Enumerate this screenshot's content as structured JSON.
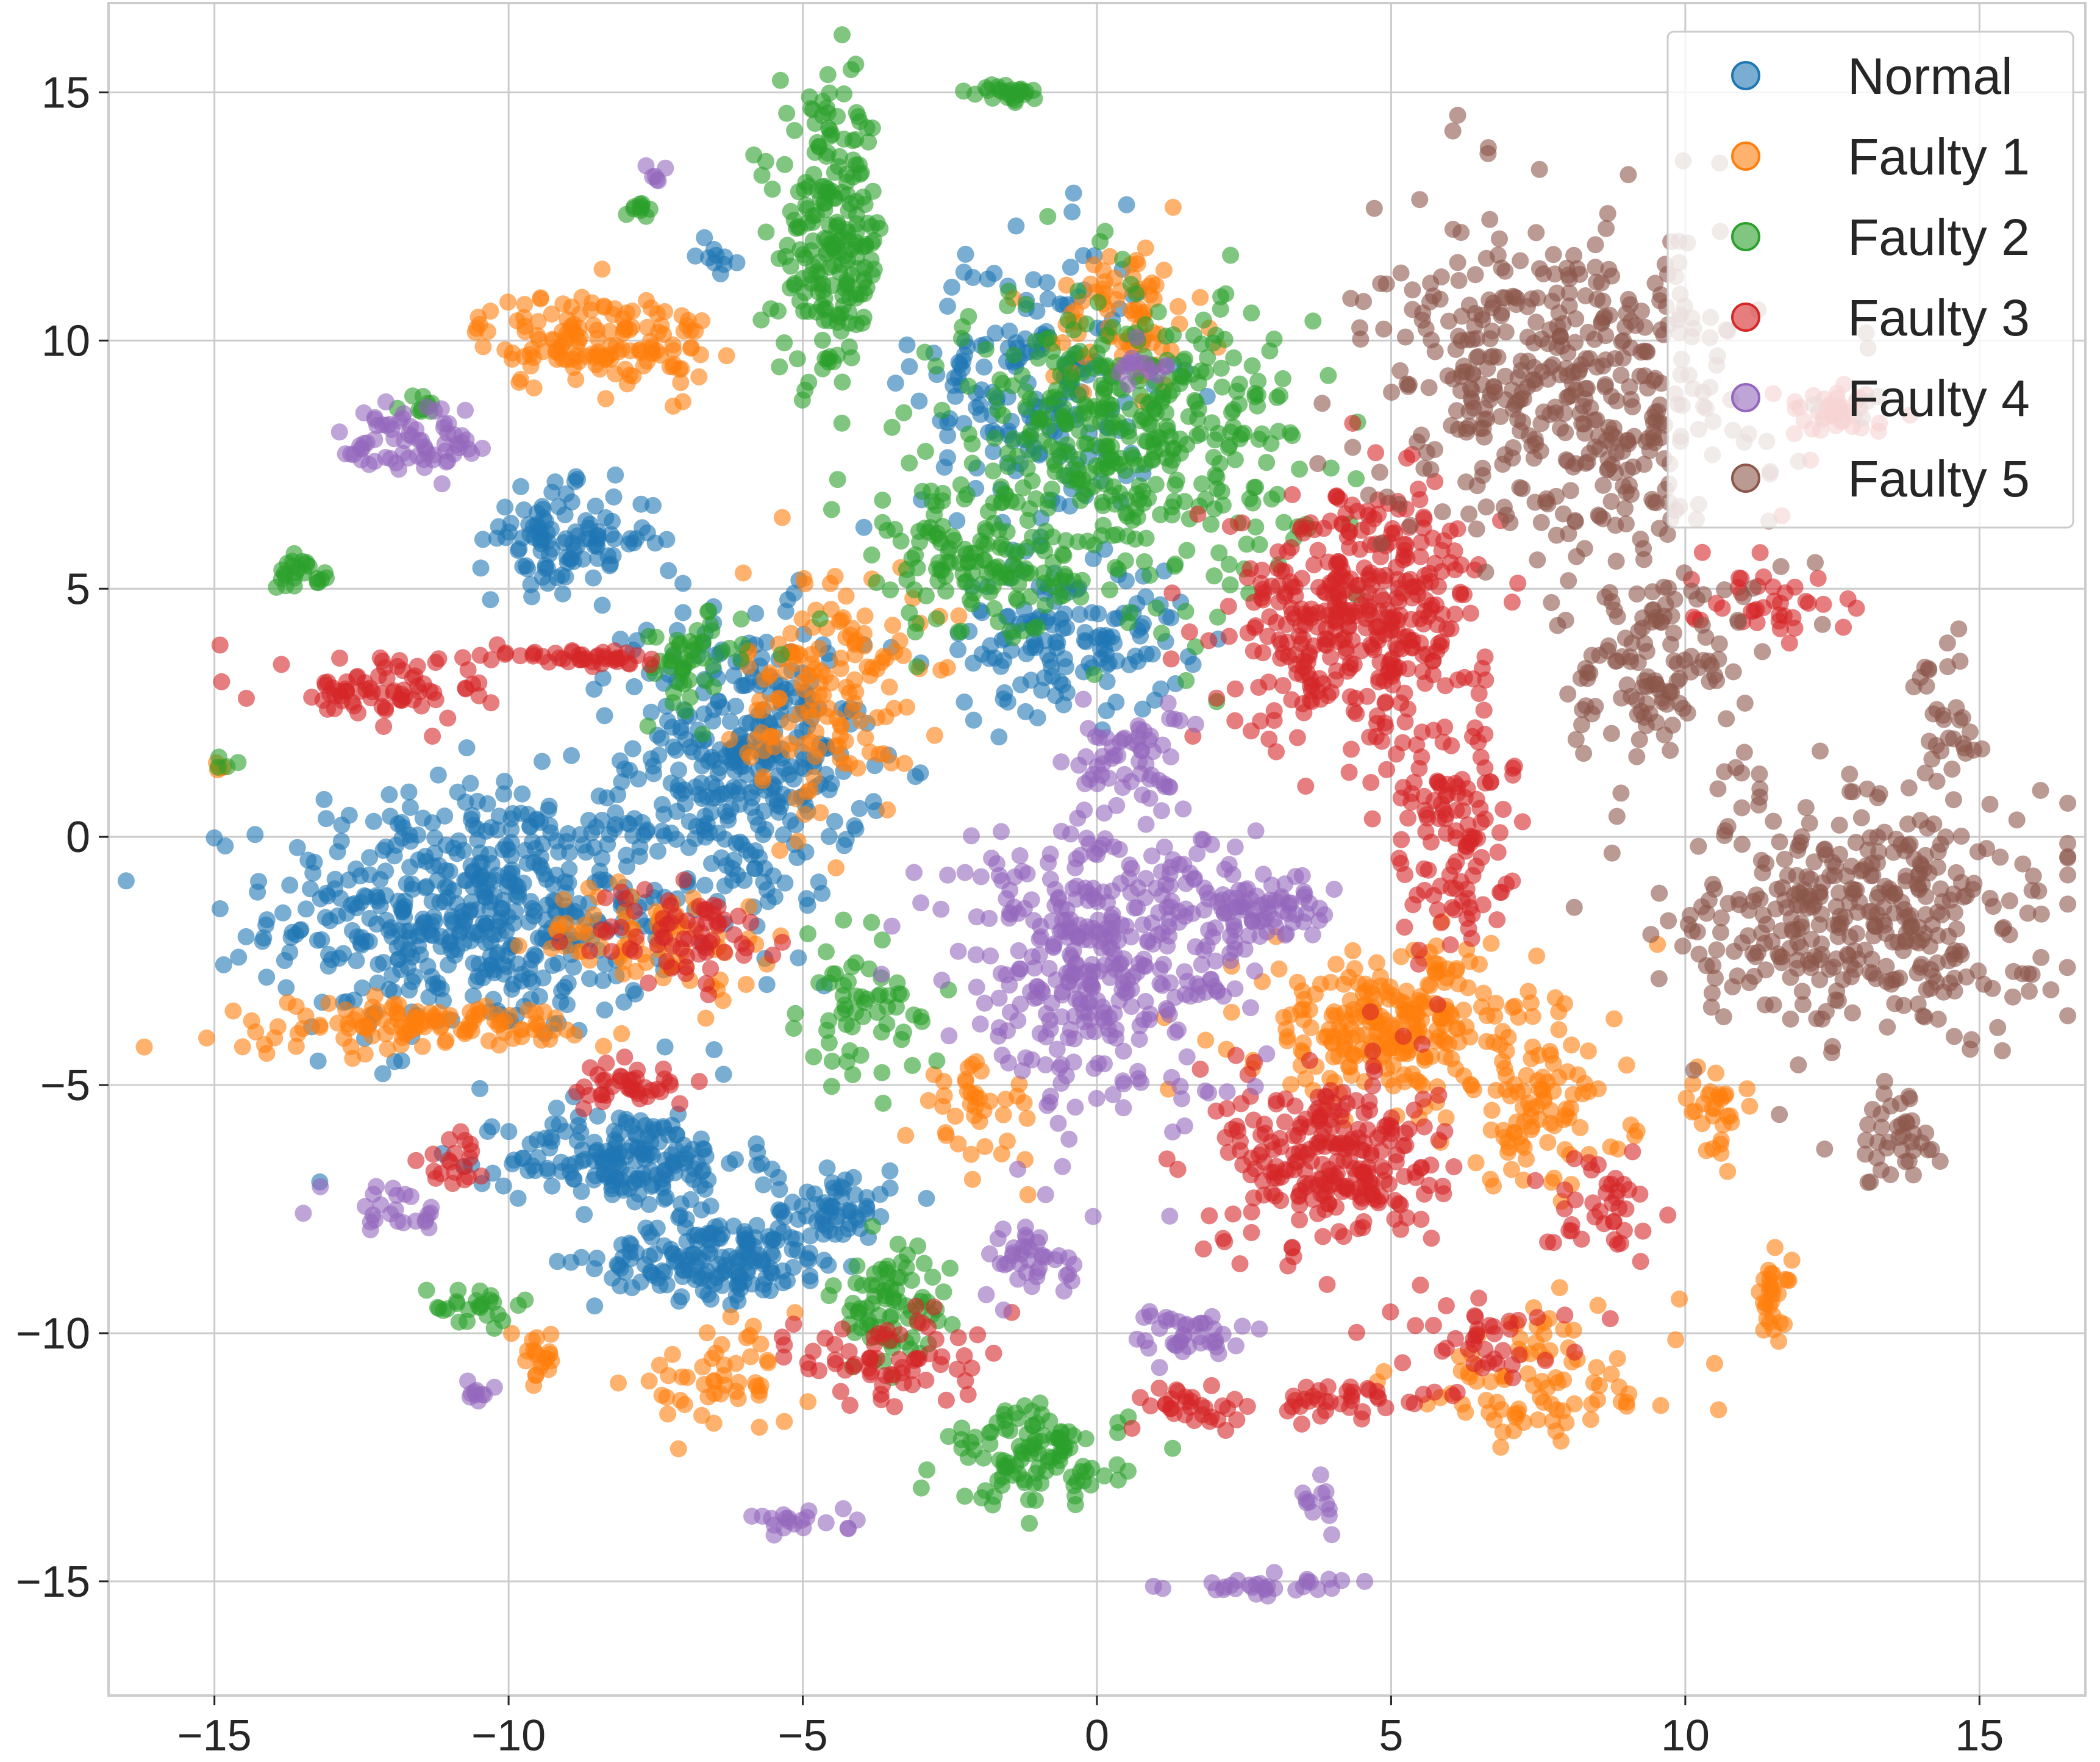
{
  "chart_data": {
    "type": "scatter",
    "title": "",
    "xlabel": "",
    "ylabel": "",
    "xlim": [
      -16.8,
      16.8
    ],
    "ylim": [
      -17.3,
      16.8
    ],
    "xticks": [
      -15,
      -10,
      -5,
      0,
      5,
      10,
      15
    ],
    "yticks": [
      -15,
      -10,
      -5,
      0,
      5,
      10,
      15
    ],
    "xtick_labels": [
      "−15",
      "−10",
      "−5",
      "0",
      "5",
      "10",
      "15"
    ],
    "ytick_labels": [
      "−15",
      "−10",
      "−5",
      "0",
      "5",
      "10",
      "15"
    ],
    "grid": true,
    "legend_position": "top-right",
    "marker_opacity": 0.6,
    "series": [
      {
        "name": "Normal",
        "color": "#1f77b4",
        "clusters": [
          {
            "cx": -10.5,
            "cy": -1.5,
            "rx": 3.5,
            "ry": 2.6,
            "n": 520
          },
          {
            "cx": -6.0,
            "cy": 1.5,
            "rx": 2.0,
            "ry": 3.0,
            "n": 340
          },
          {
            "cx": -8.0,
            "cy": -6.5,
            "rx": 2.0,
            "ry": 1.0,
            "n": 180
          },
          {
            "cx": -6.5,
            "cy": -8.5,
            "rx": 2.0,
            "ry": 0.8,
            "n": 160
          },
          {
            "cx": -4.5,
            "cy": -7.5,
            "rx": 1.0,
            "ry": 1.0,
            "n": 70
          },
          {
            "cx": -9.0,
            "cy": 6.0,
            "rx": 1.5,
            "ry": 1.0,
            "n": 110
          },
          {
            "cx": -1.0,
            "cy": 9.0,
            "rx": 2.0,
            "ry": 3.0,
            "n": 200
          },
          {
            "cx": -0.5,
            "cy": 4.0,
            "rx": 2.0,
            "ry": 1.5,
            "n": 140
          },
          {
            "cx": -6.5,
            "cy": 11.7,
            "rx": 0.3,
            "ry": 0.3,
            "n": 10
          }
        ]
      },
      {
        "name": "Faulty 1",
        "color": "#ff7f0e",
        "clusters": [
          {
            "cx": -8.5,
            "cy": 10.0,
            "rx": 2.0,
            "ry": 1.0,
            "n": 150
          },
          {
            "cx": -4.5,
            "cy": 3.0,
            "rx": 1.5,
            "ry": 2.5,
            "n": 150
          },
          {
            "cx": -11.5,
            "cy": -3.8,
            "rx": 3.5,
            "ry": 0.5,
            "n": 120
          },
          {
            "cx": -7.5,
            "cy": -2.0,
            "rx": 2.0,
            "ry": 1.0,
            "n": 80
          },
          {
            "cx": 0.5,
            "cy": 10.5,
            "rx": 1.2,
            "ry": 1.5,
            "n": 80
          },
          {
            "cx": 5.0,
            "cy": -3.8,
            "rx": 2.5,
            "ry": 1.5,
            "n": 260
          },
          {
            "cx": 7.5,
            "cy": -5.5,
            "rx": 1.5,
            "ry": 1.5,
            "n": 90
          },
          {
            "cx": 7.5,
            "cy": -11.0,
            "rx": 2.5,
            "ry": 1.5,
            "n": 90
          },
          {
            "cx": 11.5,
            "cy": -9.3,
            "rx": 0.3,
            "ry": 0.8,
            "n": 30
          },
          {
            "cx": 10.5,
            "cy": -5.5,
            "rx": 0.5,
            "ry": 0.8,
            "n": 30
          },
          {
            "cx": -6.5,
            "cy": -11.0,
            "rx": 1.5,
            "ry": 1.0,
            "n": 50
          },
          {
            "cx": -2.0,
            "cy": -5.5,
            "rx": 1.0,
            "ry": 1.0,
            "n": 40
          },
          {
            "cx": -15.0,
            "cy": 1.4,
            "rx": 0.2,
            "ry": 0.2,
            "n": 4
          },
          {
            "cx": -9.5,
            "cy": -10.5,
            "rx": 0.3,
            "ry": 0.6,
            "n": 20
          }
        ]
      },
      {
        "name": "Faulty 2",
        "color": "#2ca02c",
        "clusters": [
          {
            "cx": -4.5,
            "cy": 12.0,
            "rx": 0.9,
            "ry": 2.8,
            "n": 220
          },
          {
            "cx": 0.5,
            "cy": 8.0,
            "rx": 3.0,
            "ry": 3.0,
            "n": 420
          },
          {
            "cx": -2.0,
            "cy": 5.5,
            "rx": 1.5,
            "ry": 1.5,
            "n": 120
          },
          {
            "cx": -1.0,
            "cy": -12.5,
            "rx": 1.5,
            "ry": 1.0,
            "n": 110
          },
          {
            "cx": -3.5,
            "cy": -9.5,
            "rx": 1.0,
            "ry": 1.2,
            "n": 80
          },
          {
            "cx": -4.0,
            "cy": -3.5,
            "rx": 1.0,
            "ry": 1.5,
            "n": 60
          },
          {
            "cx": -7.0,
            "cy": 3.5,
            "rx": 1.0,
            "ry": 1.0,
            "n": 50
          },
          {
            "cx": -13.5,
            "cy": 5.3,
            "rx": 0.5,
            "ry": 0.3,
            "n": 25
          },
          {
            "cx": -1.5,
            "cy": 15.0,
            "rx": 0.5,
            "ry": 0.2,
            "n": 25
          },
          {
            "cx": -11.5,
            "cy": 8.7,
            "rx": 0.3,
            "ry": 0.2,
            "n": 10
          },
          {
            "cx": -7.8,
            "cy": 12.7,
            "rx": 0.3,
            "ry": 0.2,
            "n": 10
          },
          {
            "cx": -10.5,
            "cy": -9.5,
            "rx": 1.0,
            "ry": 0.5,
            "n": 25
          },
          {
            "cx": -14.8,
            "cy": 1.5,
            "rx": 0.2,
            "ry": 0.2,
            "n": 4
          }
        ]
      },
      {
        "name": "Faulty 3",
        "color": "#d62728",
        "clusters": [
          {
            "cx": 4.5,
            "cy": 4.5,
            "rx": 2.2,
            "ry": 2.5,
            "n": 400
          },
          {
            "cx": 6.0,
            "cy": 0.0,
            "rx": 1.0,
            "ry": 2.5,
            "n": 110
          },
          {
            "cx": 4.0,
            "cy": -6.5,
            "rx": 1.8,
            "ry": 1.8,
            "n": 250
          },
          {
            "cx": -12.0,
            "cy": 3.0,
            "rx": 1.8,
            "ry": 0.8,
            "n": 80
          },
          {
            "cx": -8.5,
            "cy": 3.6,
            "rx": 1.3,
            "ry": 0.2,
            "n": 40
          },
          {
            "cx": -7.0,
            "cy": -2.0,
            "rx": 1.5,
            "ry": 1.0,
            "n": 70
          },
          {
            "cx": -8.0,
            "cy": -5.0,
            "rx": 1.0,
            "ry": 0.5,
            "n": 40
          },
          {
            "cx": -3.5,
            "cy": -10.5,
            "rx": 1.5,
            "ry": 1.0,
            "n": 70
          },
          {
            "cx": 1.5,
            "cy": -11.5,
            "rx": 1.0,
            "ry": 0.5,
            "n": 30
          },
          {
            "cx": 4.0,
            "cy": -11.3,
            "rx": 1.5,
            "ry": 0.3,
            "n": 40
          },
          {
            "cx": 6.5,
            "cy": -10.0,
            "rx": 1.5,
            "ry": 0.8,
            "n": 40
          },
          {
            "cx": 8.5,
            "cy": -7.5,
            "rx": 1.0,
            "ry": 1.0,
            "n": 40
          },
          {
            "cx": 11.5,
            "cy": 5.0,
            "rx": 1.5,
            "ry": 1.0,
            "n": 40
          },
          {
            "cx": 12.5,
            "cy": 8.5,
            "rx": 1.0,
            "ry": 0.6,
            "n": 40
          },
          {
            "cx": -11.0,
            "cy": -6.5,
            "rx": 0.5,
            "ry": 0.5,
            "n": 20
          }
        ]
      },
      {
        "name": "Faulty 4",
        "color": "#9467bd",
        "clusters": [
          {
            "cx": 0.0,
            "cy": -2.5,
            "rx": 2.5,
            "ry": 3.0,
            "n": 360
          },
          {
            "cx": 2.5,
            "cy": -1.5,
            "rx": 1.5,
            "ry": 0.8,
            "n": 90
          },
          {
            "cx": 0.5,
            "cy": 1.5,
            "rx": 1.0,
            "ry": 1.0,
            "n": 60
          },
          {
            "cx": -11.5,
            "cy": 8.0,
            "rx": 1.3,
            "ry": 0.8,
            "n": 70
          },
          {
            "cx": -1.0,
            "cy": -8.5,
            "rx": 0.8,
            "ry": 0.8,
            "n": 40
          },
          {
            "cx": 1.5,
            "cy": -10.0,
            "rx": 1.2,
            "ry": 0.5,
            "n": 40
          },
          {
            "cx": 3.0,
            "cy": -15.1,
            "rx": 2.0,
            "ry": 0.2,
            "n": 30
          },
          {
            "cx": -5.0,
            "cy": -13.8,
            "rx": 1.0,
            "ry": 0.3,
            "n": 20
          },
          {
            "cx": -12.0,
            "cy": -7.5,
            "rx": 1.0,
            "ry": 0.5,
            "n": 25
          },
          {
            "cx": -10.5,
            "cy": -11.3,
            "rx": 0.2,
            "ry": 0.4,
            "n": 10
          },
          {
            "cx": -7.5,
            "cy": 13.3,
            "rx": 0.2,
            "ry": 0.2,
            "n": 6
          },
          {
            "cx": 0.8,
            "cy": 9.5,
            "rx": 0.6,
            "ry": 0.3,
            "n": 15
          },
          {
            "cx": 3.8,
            "cy": -13.5,
            "rx": 0.3,
            "ry": 0.5,
            "n": 12
          }
        ]
      },
      {
        "name": "Faulty 5",
        "color": "#8c564b",
        "clusters": [
          {
            "cx": 8.0,
            "cy": 9.0,
            "rx": 3.2,
            "ry": 3.3,
            "n": 460
          },
          {
            "cx": 9.5,
            "cy": 3.5,
            "rx": 1.5,
            "ry": 2.0,
            "n": 120
          },
          {
            "cx": 13.0,
            "cy": -1.5,
            "rx": 3.0,
            "ry": 2.5,
            "n": 380
          },
          {
            "cx": 13.5,
            "cy": -6.0,
            "rx": 0.8,
            "ry": 1.2,
            "n": 40
          },
          {
            "cx": 14.5,
            "cy": 2.5,
            "rx": 0.5,
            "ry": 1.8,
            "n": 30
          }
        ]
      }
    ]
  }
}
